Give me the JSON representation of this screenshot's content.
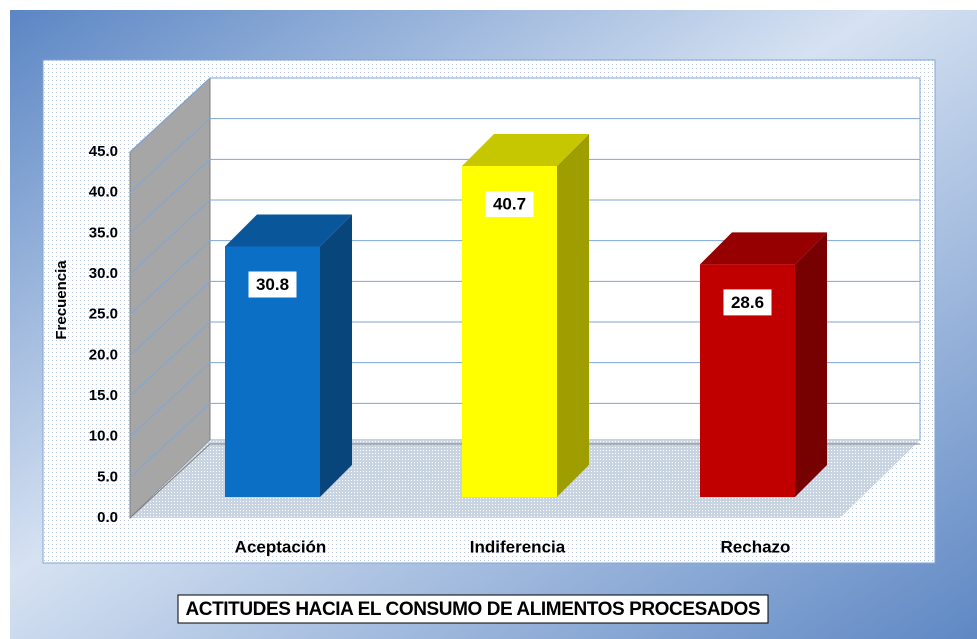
{
  "chart_data": {
    "type": "bar3d",
    "title": "ACTITUDES HACIA EL CONSUMO DE ALIMENTOS PROCESADOS",
    "ylabel": "Frecuencia",
    "categories": [
      "Aceptación",
      "Indiferencia",
      "Rechazo"
    ],
    "values": [
      30.8,
      40.7,
      28.6
    ],
    "colors": [
      "#0b6fc6",
      "#ffff00",
      "#c00000"
    ],
    "ylim": [
      0,
      45
    ],
    "yticks": [
      {
        "value": 0,
        "label": "0.0"
      },
      {
        "value": 5,
        "label": "5.0"
      },
      {
        "value": 10,
        "label": "10.0"
      },
      {
        "value": 15,
        "label": "15.0"
      },
      {
        "value": 20,
        "label": "20.0"
      },
      {
        "value": 25,
        "label": "25.0"
      },
      {
        "value": 30,
        "label": "30.0"
      },
      {
        "value": 35,
        "label": "35.0"
      },
      {
        "value": 40,
        "label": "40.0"
      },
      {
        "value": 45,
        "label": "45.0"
      }
    ],
    "grid": true
  }
}
